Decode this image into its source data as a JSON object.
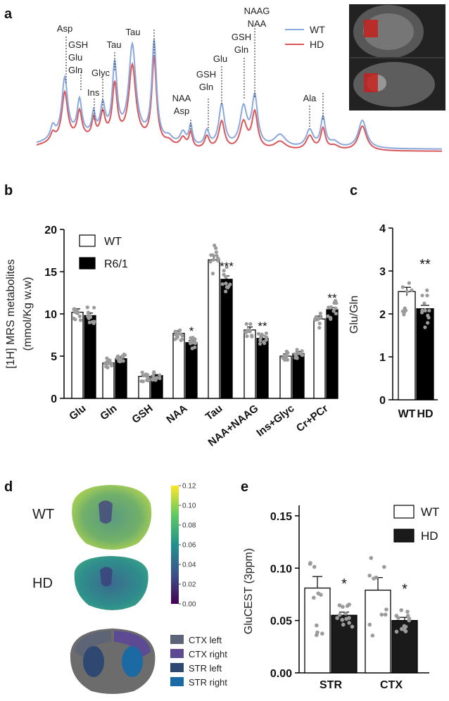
{
  "panels": {
    "a": "a",
    "b": "b",
    "c": "c",
    "d": "d",
    "e": "e"
  },
  "colors": {
    "wt_line": "#8aa8dc",
    "hd_line": "#d9575b",
    "wt_bar": "#ffffff",
    "hd_bar": "#000000",
    "dot": "#9b9b9b"
  },
  "spectrum": {
    "legend": [
      "WT",
      "HD"
    ],
    "labels": [
      {
        "id": "asp1",
        "lines": [
          "Asp"
        ]
      },
      {
        "id": "gsh1",
        "lines": [
          "GSH",
          "Glu",
          "Gln"
        ]
      },
      {
        "id": "ins",
        "lines": [
          "Ins"
        ]
      },
      {
        "id": "glyc",
        "lines": [
          "Glyc"
        ]
      },
      {
        "id": "tau1",
        "lines": [
          "Tau"
        ]
      },
      {
        "id": "tau2",
        "lines": [
          "Tau"
        ]
      },
      {
        "id": "naa1",
        "lines": [
          "NAA",
          "Asp"
        ]
      },
      {
        "id": "gsh2",
        "lines": [
          "GSH",
          "Gln"
        ]
      },
      {
        "id": "glu2",
        "lines": [
          "Glu"
        ]
      },
      {
        "id": "gsh3",
        "lines": [
          "GSH",
          "Gln"
        ]
      },
      {
        "id": "naag",
        "lines": [
          "NAAG",
          "NAA"
        ]
      },
      {
        "id": "ala",
        "lines": [
          "Ala"
        ]
      }
    ]
  },
  "chart_data": [
    {
      "id": "b",
      "type": "bar",
      "title": "",
      "ylabel": "[1H] MRS metabolites",
      "ylabel2": "(mmol/Kg w.w)",
      "ylim": [
        0,
        20
      ],
      "yticks": [
        0,
        5,
        10,
        15,
        20
      ],
      "categories": [
        "Glu",
        "Gln",
        "GSH",
        "NAA",
        "Tau",
        "NAA+NAAG",
        "Ins+Glyc",
        "Cr+PCr"
      ],
      "legend": [
        "WT",
        "R6/1"
      ],
      "series": [
        {
          "name": "WT",
          "values": [
            10.2,
            4.2,
            2.6,
            7.7,
            16.4,
            8.1,
            5.0,
            9.4
          ],
          "errors": [
            0.4,
            0.2,
            0.15,
            0.3,
            0.5,
            0.35,
            0.25,
            0.35
          ]
        },
        {
          "name": "R6/1",
          "values": [
            9.8,
            4.7,
            2.7,
            6.6,
            14.1,
            7.1,
            5.3,
            10.5
          ],
          "errors": [
            0.3,
            0.2,
            0.12,
            0.25,
            0.4,
            0.3,
            0.25,
            0.25
          ]
        }
      ],
      "significance": [
        "",
        "",
        "",
        "*",
        "***",
        "**",
        "",
        "**"
      ]
    },
    {
      "id": "c",
      "type": "bar",
      "ylabel": "Glu/Gln",
      "ylim": [
        0,
        4
      ],
      "yticks": [
        0,
        1,
        2,
        3,
        4
      ],
      "categories": [
        "WT",
        "HD"
      ],
      "values": [
        2.52,
        2.12
      ],
      "errors": [
        0.1,
        0.08
      ],
      "significance": [
        "",
        "**"
      ]
    },
    {
      "id": "e",
      "type": "bar",
      "ylabel": "GluCEST (3ppm)",
      "ylim": [
        0,
        0.16
      ],
      "yticks": [
        "0.00",
        "0.05",
        "0.10",
        "0.15"
      ],
      "categories": [
        "STR",
        "CTX"
      ],
      "legend": [
        "WT",
        "HD"
      ],
      "series": [
        {
          "name": "WT",
          "values": [
            0.081,
            0.079
          ],
          "errors": [
            0.011,
            0.012
          ]
        },
        {
          "name": "HD",
          "values": [
            0.055,
            0.05
          ],
          "errors": [
            0.003,
            0.003
          ]
        }
      ],
      "significance": [
        "*",
        "*"
      ]
    }
  ],
  "panel_d": {
    "row_labels": [
      "WT",
      "HD"
    ],
    "colorbar_ticks": [
      "0.12",
      "0.10",
      "0.08",
      "0.06",
      "0.04",
      "0.02",
      "0.00"
    ],
    "roi_legend": [
      {
        "label": "CTX left",
        "color": "#5b6478"
      },
      {
        "label": "CTX right",
        "color": "#5d4a92"
      },
      {
        "label": "STR left",
        "color": "#2e4872"
      },
      {
        "label": "STR right",
        "color": "#1c6aa3"
      }
    ]
  }
}
